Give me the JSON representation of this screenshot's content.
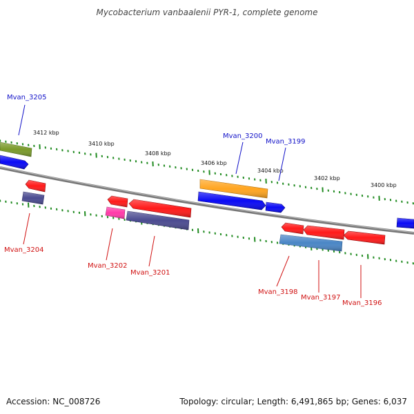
{
  "title": "Mycobacterium vanbaalenii PYR-1, complete genome",
  "footer": {
    "accession": "Accession: NC_008726",
    "topology": "Topology: circular; Length: 6,491,865 bp; Genes: 6,037"
  },
  "colors": {
    "backbone": "#888888",
    "tick": "#1f8a1f",
    "forward_label": "#1010c8",
    "reverse_label": "#d01010",
    "red": "#ff1a1a",
    "blue": "#0a0af5",
    "orange": "#ffa520",
    "green": "#7a9a2a",
    "navy": "#4b4b90",
    "steel": "#4a86c6",
    "pink": "#ff3aa8"
  },
  "kbp_labels": [
    "3412 kbp",
    "3410 kbp",
    "3408 kbp",
    "3406 kbp",
    "3404 kbp",
    "3402 kbp",
    "3400 kbp"
  ],
  "gene_labels": {
    "forward": [
      "Mvan_3205",
      "Mvan_3200",
      "Mvan_3199"
    ],
    "reverse": [
      "Mvan_3204",
      "Mvan_3202",
      "Mvan_3201",
      "Mvan_3198",
      "Mvan_3197",
      "Mvan_3196"
    ]
  },
  "genes": [
    {
      "name": "gene-green-3205",
      "color": "green"
    },
    {
      "name": "gene-blue-3205",
      "color": "blue"
    },
    {
      "name": "gene-red-3204",
      "color": "red"
    },
    {
      "name": "gene-navy-3204",
      "color": "navy"
    },
    {
      "name": "gene-red-3202",
      "color": "red"
    },
    {
      "name": "gene-pink-3202",
      "color": "pink"
    },
    {
      "name": "gene-red-3201",
      "color": "red"
    },
    {
      "name": "gene-navy-3201",
      "color": "navy"
    },
    {
      "name": "gene-orange-3200",
      "color": "orange"
    },
    {
      "name": "gene-blue-3200",
      "color": "blue"
    },
    {
      "name": "gene-blue-3199",
      "color": "blue"
    },
    {
      "name": "gene-red-3198",
      "color": "red"
    },
    {
      "name": "gene-steel-3198",
      "color": "steel"
    },
    {
      "name": "gene-red-3197",
      "color": "red"
    },
    {
      "name": "gene-red-3196",
      "color": "red"
    },
    {
      "name": "gene-blue-edge",
      "color": "blue"
    }
  ]
}
